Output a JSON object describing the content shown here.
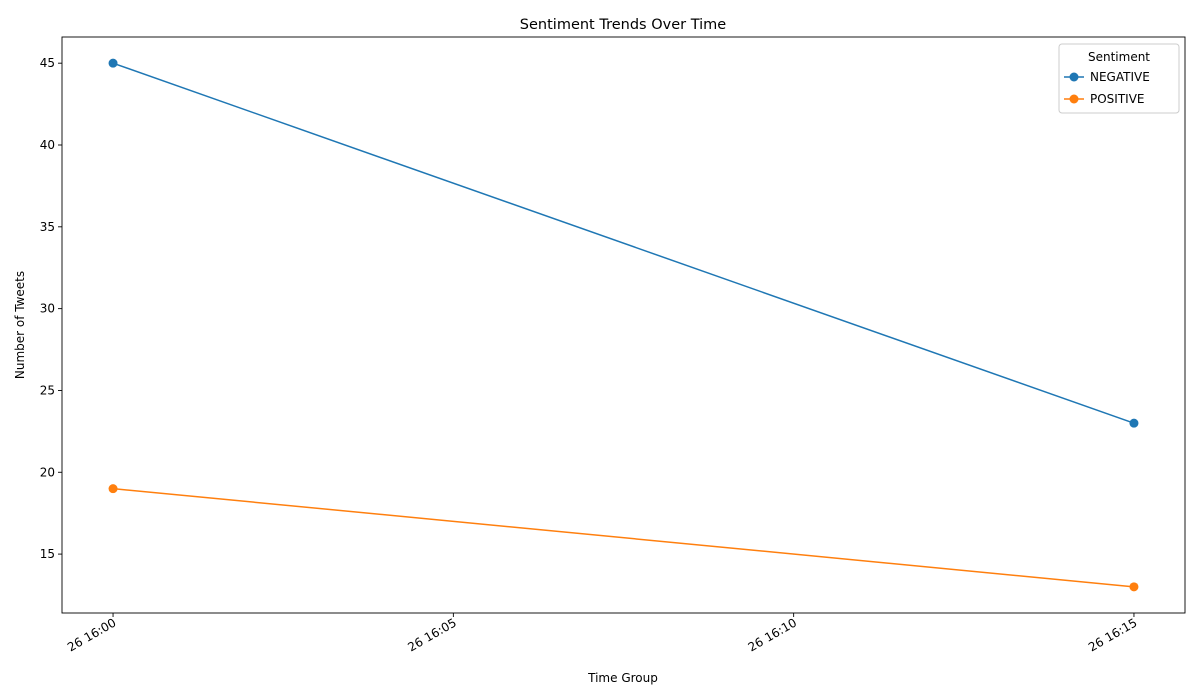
{
  "chart_data": {
    "type": "line",
    "title": "Sentiment Trends Over Time",
    "xlabel": "Time Group",
    "ylabel": "Number of Tweets",
    "x_ticks": [
      "26 16:00",
      "26 16:05",
      "26 16:10",
      "26 16:15"
    ],
    "x_tick_minutes": [
      0,
      5,
      10,
      15
    ],
    "x": [
      0,
      15
    ],
    "x_labels": [
      "26 16:00",
      "26 16:15"
    ],
    "xlim": [
      -0.75,
      15.75
    ],
    "ylim": [
      11.4,
      46.6
    ],
    "y_ticks": [
      15,
      20,
      25,
      30,
      35,
      40,
      45
    ],
    "grid": false,
    "legend": {
      "title": "Sentiment",
      "placement": "top-right"
    },
    "series": [
      {
        "name": "NEGATIVE",
        "color": "#1f77b4",
        "values": [
          45,
          23
        ]
      },
      {
        "name": "POSITIVE",
        "color": "#ff7f0e",
        "values": [
          19,
          13
        ]
      }
    ]
  }
}
